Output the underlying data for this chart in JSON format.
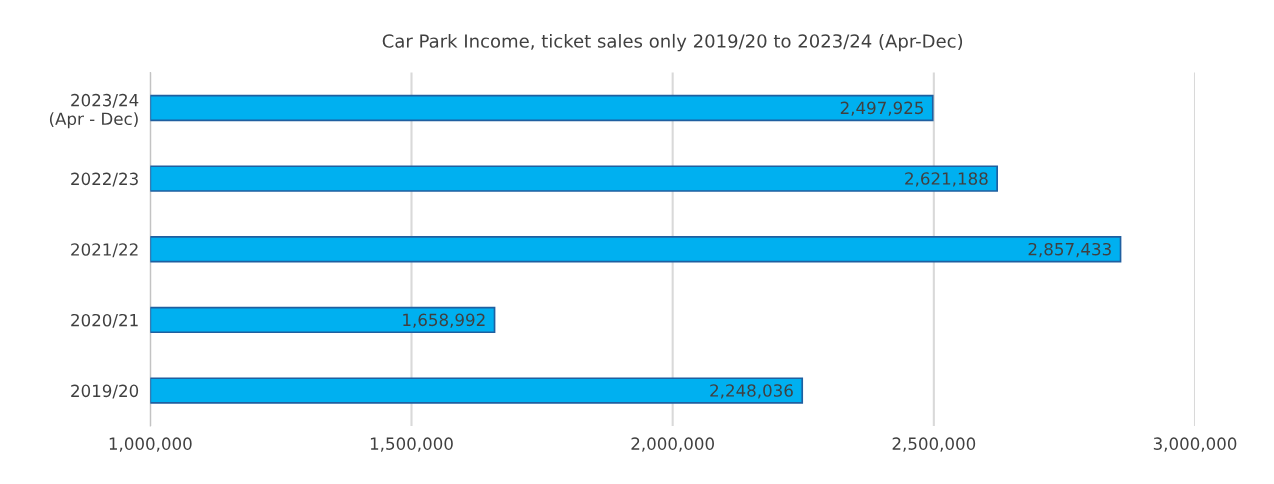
{
  "chart_data": {
    "type": "bar",
    "orientation": "horizontal",
    "title": "Car Park Income, ticket sales only 2019/20 to 2023/24 (Apr-Dec)",
    "categories": [
      "2023/24\n(Apr - Dec)",
      "2022/23",
      "2021/22",
      "2020/21",
      "2019/20"
    ],
    "values": [
      2497925,
      2621188,
      2857433,
      1658992,
      2248036
    ],
    "color": "#00b0f0",
    "xlim": [
      1000000,
      3000000
    ],
    "xticks": [
      {
        "value": 1000000,
        "label": "1,000,000"
      },
      {
        "value": 1500000,
        "label": "1,500,000"
      },
      {
        "value": 2000000,
        "label": "2,000,000"
      },
      {
        "value": 2500000,
        "label": "2,500,000"
      },
      {
        "value": 3000000,
        "label": "3,000,000"
      }
    ],
    "value_labels": [
      "2,497,925",
      "2,621,188",
      "2,857,433",
      "1,658,992",
      "2,248,036"
    ],
    "grid": "x",
    "legend": false
  }
}
